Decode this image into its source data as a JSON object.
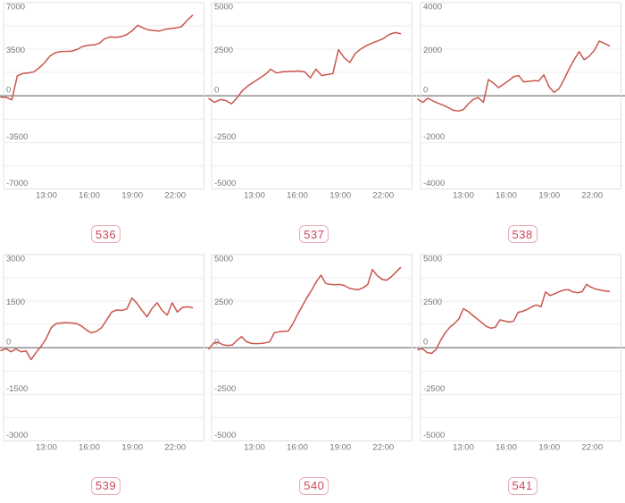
{
  "page": {
    "background": "#ffffff"
  },
  "colors": {
    "line": "#c9564c",
    "axis_text": "#777777",
    "grid_minor": "#ededed",
    "grid_zero": "#8f8f8f",
    "plot_border": "#e0e0e0",
    "badge_text": "#c9485b",
    "badge_border": "#e8abb6",
    "badge_bg": "#ffffff"
  },
  "chart_data": [
    {
      "type": "line",
      "label": "536",
      "title": "",
      "xlabel": "",
      "ylabel": "",
      "x_start": "10:00",
      "x_end": "23:10",
      "x_ticks": [
        "13:00",
        "16:00",
        "19:00",
        "22:00"
      ],
      "ylim": [
        -7000,
        7000
      ],
      "y_ticks": [
        "7000",
        "3500",
        "0",
        "-3500",
        "-7000"
      ],
      "grid": "horizontal-minor-eighths",
      "values": [
        -100,
        -120,
        -300,
        1500,
        1680,
        1720,
        1800,
        2100,
        2500,
        3000,
        3250,
        3330,
        3340,
        3360,
        3500,
        3720,
        3800,
        3830,
        3950,
        4300,
        4420,
        4400,
        4450,
        4600,
        4900,
        5300,
        5100,
        4950,
        4900,
        4870,
        5000,
        5050,
        5100,
        5200,
        5650,
        6050
      ]
    },
    {
      "type": "line",
      "label": "537",
      "title": "",
      "xlabel": "",
      "ylabel": "",
      "x_start": "10:00",
      "x_end": "23:10",
      "x_ticks": [
        "13:00",
        "16:00",
        "19:00",
        "22:00"
      ],
      "ylim": [
        -5000,
        5000
      ],
      "y_ticks": [
        "5000",
        "2500",
        "0",
        "-2500",
        "-5000"
      ],
      "grid": "horizontal-minor-eighths",
      "values": [
        -150,
        -350,
        -200,
        -250,
        -430,
        -100,
        300,
        550,
        750,
        950,
        1150,
        1430,
        1220,
        1290,
        1310,
        1320,
        1330,
        1290,
        960,
        1430,
        1090,
        1140,
        1190,
        2480,
        2050,
        1790,
        2280,
        2520,
        2700,
        2840,
        2950,
        3080,
        3290,
        3400,
        3340
      ]
    },
    {
      "type": "line",
      "label": "538",
      "title": "",
      "xlabel": "",
      "ylabel": "",
      "x_start": "10:00",
      "x_end": "23:10",
      "x_ticks": [
        "13:00",
        "16:00",
        "19:00",
        "22:00"
      ],
      "ylim": [
        -4000,
        4000
      ],
      "y_ticks": [
        "4000",
        "2000",
        "0",
        "-2000",
        "-4000"
      ],
      "grid": "horizontal-minor-eighths",
      "values": [
        -150,
        -280,
        -100,
        -220,
        -320,
        -400,
        -500,
        -620,
        -650,
        -600,
        -350,
        -150,
        -80,
        -280,
        700,
        550,
        350,
        500,
        650,
        820,
        870,
        600,
        620,
        650,
        640,
        900,
        400,
        150,
        300,
        700,
        1150,
        1550,
        1900,
        1550,
        1700,
        1950,
        2350,
        2250,
        2150
      ]
    },
    {
      "type": "line",
      "label": "539",
      "title": "",
      "xlabel": "",
      "ylabel": "",
      "x_start": "10:00",
      "x_end": "23:10",
      "x_ticks": [
        "13:00",
        "16:00",
        "19:00",
        "22:00"
      ],
      "ylim": [
        -3000,
        3000
      ],
      "y_ticks": [
        "3000",
        "1500",
        "0",
        "-1500",
        "-3000"
      ],
      "grid": "horizontal-minor-eighths",
      "values": [
        -90,
        -30,
        -130,
        -40,
        -130,
        -100,
        -380,
        -150,
        50,
        300,
        650,
        780,
        800,
        810,
        800,
        780,
        700,
        570,
        480,
        530,
        650,
        900,
        1150,
        1220,
        1200,
        1250,
        1600,
        1430,
        1200,
        1000,
        1270,
        1450,
        1200,
        1050,
        1450,
        1150,
        1300,
        1320,
        1290
      ]
    },
    {
      "type": "line",
      "label": "540",
      "title": "",
      "xlabel": "",
      "ylabel": "",
      "x_start": "10:00",
      "x_end": "23:10",
      "x_ticks": [
        "13:00",
        "16:00",
        "19:00",
        "22:00"
      ],
      "ylim": [
        -5000,
        5000
      ],
      "y_ticks": [
        "5000",
        "2500",
        "0",
        "-2500",
        "-5000"
      ],
      "grid": "horizontal-minor-eighths",
      "values": [
        -60,
        250,
        300,
        160,
        120,
        150,
        400,
        600,
        330,
        240,
        220,
        230,
        260,
        320,
        800,
        860,
        880,
        900,
        1300,
        1800,
        2250,
        2700,
        3100,
        3550,
        3900,
        3450,
        3400,
        3380,
        3400,
        3340,
        3200,
        3150,
        3120,
        3220,
        3400,
        4200,
        3880,
        3680,
        3620,
        3800,
        4050,
        4300
      ]
    },
    {
      "type": "line",
      "label": "541",
      "title": "",
      "xlabel": "",
      "ylabel": "",
      "x_start": "10:00",
      "x_end": "23:10",
      "x_ticks": [
        "13:00",
        "16:00",
        "19:00",
        "22:00"
      ],
      "ylim": [
        -5000,
        5000
      ],
      "y_ticks": [
        "5000",
        "2500",
        "0",
        "-2500",
        "-5000"
      ],
      "grid": "horizontal-minor-eighths",
      "values": [
        -100,
        -50,
        -250,
        -300,
        -100,
        400,
        800,
        1100,
        1300,
        1550,
        2100,
        1950,
        1750,
        1550,
        1350,
        1150,
        1050,
        1100,
        1500,
        1440,
        1380,
        1430,
        1900,
        1960,
        2060,
        2200,
        2300,
        2200,
        3000,
        2800,
        2900,
        3010,
        3100,
        3120,
        3000,
        2950,
        3010,
        3400,
        3250,
        3150,
        3100,
        3050,
        3020
      ]
    }
  ]
}
